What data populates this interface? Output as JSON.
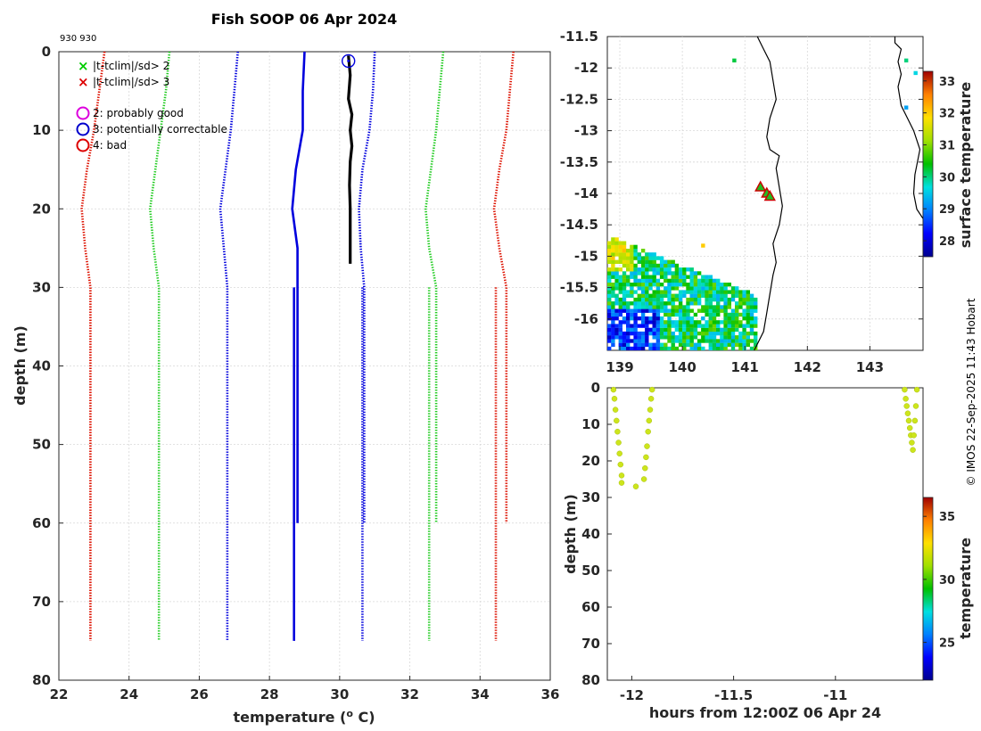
{
  "header": {
    "title": "Fish SOOP 06 Apr 2024",
    "id_label": "930 930",
    "watermark": "© IMOS 22-Sep-2025 11:43 Hobart"
  },
  "legend": {
    "flags": [
      {
        "symbol": "×",
        "color": "#00cc00",
        "label": "|t-tclim|/sd> 2"
      },
      {
        "symbol": "×",
        "color": "#dd0000",
        "label": "|t-tclim|/sd> 3"
      }
    ],
    "qc": [
      {
        "color": "#dd00dd",
        "label": "2: probably good"
      },
      {
        "color": "#0000cc",
        "label": "3: potentially correctable"
      },
      {
        "color": "#dd0000",
        "label": "4: bad"
      }
    ]
  },
  "colors": {
    "clim_mean": "#0000dd",
    "clim_2sd": "#22cc22",
    "clim_3sd": "#dd1100",
    "profile": "#000000",
    "track_point": "#cde51c"
  },
  "chart_data": [
    {
      "type": "line",
      "name": "profile",
      "xlabel": "temperature (o C)",
      "xlabel_base": "temperature (",
      "xlabel_sup": "o",
      "xlabel_end": " C)",
      "ylabel": "depth (m)",
      "xlim": [
        22,
        36
      ],
      "ylim": [
        80,
        0
      ],
      "xticks": [
        22,
        24,
        26,
        28,
        30,
        32,
        34,
        36
      ],
      "yticks": [
        0,
        10,
        20,
        30,
        40,
        50,
        60,
        70,
        80
      ],
      "grid": true,
      "series": [
        {
          "name": "climatology mean",
          "style": "solid",
          "role": "mean",
          "x": [
            29.0,
            28.95,
            28.95,
            28.75,
            28.65,
            28.8,
            28.8,
            28.8
          ],
          "y": [
            0,
            5,
            10,
            15,
            20,
            25,
            30,
            60
          ]
        },
        {
          "name": "climatology mean (deep)",
          "style": "solid",
          "role": "mean",
          "x": [
            28.7,
            28.7
          ],
          "y": [
            30,
            75
          ]
        },
        {
          "name": "mean -1sd",
          "style": "dotted",
          "role": "mean",
          "x": [
            27.1,
            27.0,
            26.9,
            26.75,
            26.6,
            26.7,
            26.8,
            26.8
          ],
          "y": [
            0,
            5,
            10,
            15,
            20,
            25,
            30,
            75
          ]
        },
        {
          "name": "mean +1sd",
          "style": "dotted",
          "role": "mean",
          "x": [
            31.0,
            30.95,
            30.85,
            30.65,
            30.55,
            30.6,
            30.7,
            30.7
          ],
          "y": [
            0,
            5,
            10,
            15,
            20,
            25,
            30,
            60
          ]
        },
        {
          "name": "mean +1sd (deep)",
          "style": "dotted",
          "role": "mean",
          "x": [
            30.65,
            30.65
          ],
          "y": [
            30,
            75
          ]
        },
        {
          "name": "mean -2sd",
          "style": "dotted",
          "role": "2sd",
          "x": [
            25.15,
            25.05,
            24.9,
            24.75,
            24.6,
            24.7,
            24.85,
            24.85
          ],
          "y": [
            0,
            5,
            10,
            15,
            20,
            25,
            30,
            75
          ]
        },
        {
          "name": "mean +2sd",
          "style": "dotted",
          "role": "2sd",
          "x": [
            32.95,
            32.85,
            32.75,
            32.6,
            32.45,
            32.55,
            32.75,
            32.75
          ],
          "y": [
            0,
            5,
            10,
            15,
            20,
            25,
            30,
            60
          ]
        },
        {
          "name": "mean +2sd (deep)",
          "style": "dotted",
          "role": "2sd",
          "x": [
            32.55,
            32.55
          ],
          "y": [
            30,
            75
          ]
        },
        {
          "name": "mean -3sd",
          "style": "dotted",
          "role": "3sd",
          "x": [
            23.3,
            23.15,
            23.0,
            22.8,
            22.65,
            22.75,
            22.9,
            22.9
          ],
          "y": [
            0,
            5,
            10,
            15,
            20,
            25,
            30,
            75
          ]
        },
        {
          "name": "mean +3sd",
          "style": "dotted",
          "role": "3sd",
          "x": [
            34.95,
            34.85,
            34.75,
            34.55,
            34.4,
            34.55,
            34.75,
            34.75
          ],
          "y": [
            0,
            5,
            10,
            15,
            20,
            25,
            30,
            60
          ]
        },
        {
          "name": "mean +3sd (deep)",
          "style": "dotted",
          "role": "3sd",
          "x": [
            34.45,
            34.45
          ],
          "y": [
            30,
            75
          ]
        },
        {
          "name": "observed profile",
          "style": "bold",
          "role": "profile",
          "x": [
            30.25,
            30.3,
            30.25,
            30.35,
            30.3,
            30.35,
            30.3,
            30.28,
            30.3,
            30.3,
            30.3
          ],
          "y": [
            0.5,
            3,
            6,
            8,
            10,
            12,
            14,
            17,
            20,
            24,
            27
          ]
        }
      ],
      "qc_marker": {
        "x": 30.25,
        "y": 0.5,
        "flag": "3: potentially correctable"
      }
    },
    {
      "type": "scatter",
      "name": "map",
      "colorbar_label": "surface temperature",
      "xlim": [
        138.8,
        143.85
      ],
      "ylim": [
        -16.5,
        -11.5
      ],
      "xticks": [
        139,
        140,
        141,
        142,
        143
      ],
      "yticks": [
        -11.5,
        -12,
        -12.5,
        -13,
        -13.5,
        -14,
        -14.5,
        -15,
        -15.5,
        -16
      ],
      "clim": [
        27.5,
        33.3
      ],
      "cbticks": [
        28,
        29,
        30,
        31,
        32,
        33
      ],
      "grid": true,
      "track_points": [
        {
          "lon": 141.25,
          "lat": -13.9
        },
        {
          "lon": 141.35,
          "lat": -14.0
        },
        {
          "lon": 141.4,
          "lat": -14.05
        }
      ],
      "coast_west_lon": [
        141.15,
        141.3,
        141.35,
        141.4,
        141.45,
        141.5,
        141.45,
        141.55,
        141.6,
        141.55,
        141.5,
        141.55,
        141.4,
        141.35,
        141.4,
        141.5,
        141.45,
        141.4,
        141.3,
        141.2
      ],
      "coast_west_lat": [
        -16.5,
        -16.2,
        -15.9,
        -15.6,
        -15.3,
        -15.1,
        -14.8,
        -14.5,
        -14.2,
        -13.9,
        -13.6,
        -13.4,
        -13.3,
        -13.1,
        -12.8,
        -12.5,
        -12.2,
        -11.9,
        -11.7,
        -11.5
      ],
      "coast_east_lon": [
        143.85,
        143.75,
        143.7,
        143.72,
        143.8,
        143.7,
        143.6,
        143.5,
        143.45,
        143.5,
        143.45,
        143.5,
        143.4,
        143.4
      ],
      "coast_east_lat": [
        -14.4,
        -14.25,
        -14.0,
        -13.7,
        -13.3,
        -13.0,
        -12.8,
        -12.6,
        -12.3,
        -12.1,
        -11.9,
        -11.7,
        -11.6,
        -11.5
      ]
    },
    {
      "type": "scatter",
      "name": "depth-time",
      "xlabel": "hours from 12:00Z 06 Apr 24",
      "ylabel": "depth (m)",
      "colorbar_label": "temperature",
      "xlim": [
        -12.12,
        -10.57
      ],
      "ylim": [
        80,
        0
      ],
      "xticks": [
        -12,
        -11.5,
        -11
      ],
      "xticklabels": [
        "-12",
        "-11.5",
        "-11"
      ],
      "yticks": [
        0,
        10,
        20,
        30,
        40,
        50,
        60,
        70,
        80
      ],
      "clim": [
        22,
        36.5
      ],
      "cbticks": [
        25,
        30,
        35
      ],
      "series": [
        {
          "name": "cast 1 down",
          "x": [
            -12.09,
            -12.085,
            -12.08,
            -12.075,
            -12.07,
            -12.065,
            -12.06,
            -12.055,
            -12.05,
            -12.05
          ],
          "y": [
            0.5,
            3,
            6,
            9,
            12,
            15,
            18,
            21,
            24,
            26
          ]
        },
        {
          "name": "cast 1 bottom",
          "x": [
            -11.98
          ],
          "y": [
            27
          ]
        },
        {
          "name": "cast 1 up",
          "x": [
            -11.94,
            -11.935,
            -11.93,
            -11.925,
            -11.92,
            -11.915,
            -11.91,
            -11.905,
            -11.9
          ],
          "y": [
            25,
            22,
            19,
            16,
            12,
            9,
            6,
            3,
            0.5
          ]
        },
        {
          "name": "cast 2",
          "x": [
            -10.66,
            -10.655,
            -10.65,
            -10.645,
            -10.64,
            -10.635,
            -10.63,
            -10.625,
            -10.62,
            -10.615,
            -10.61,
            -10.605,
            -10.6
          ],
          "y": [
            0.5,
            3,
            5,
            7,
            9,
            11,
            13,
            15,
            17,
            13,
            9,
            5,
            0.5
          ]
        }
      ]
    }
  ]
}
